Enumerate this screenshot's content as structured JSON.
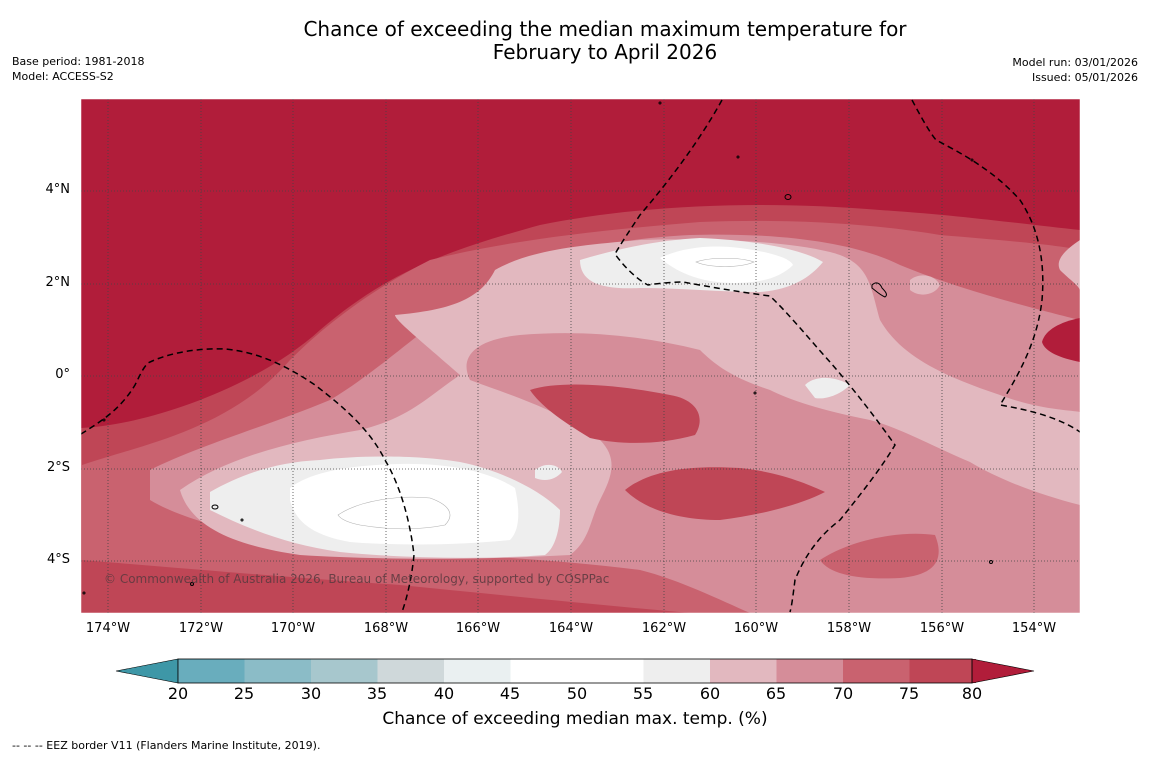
{
  "title_line1": "Chance of exceeding the median maximum temperature for",
  "title_line2": "February to April 2026",
  "base_period": "Base period: 1981-2018",
  "model": "Model: ACCESS-S2",
  "model_run": "Model run: 03/01/2026",
  "issued": "Issued: 05/01/2026",
  "copyright": "© Commonwealth of Australia 2026, Bureau of Meteorology, supported by COSPPac",
  "map": {
    "lat_labels": [
      "4°N",
      "2°N",
      "0°",
      "2°S",
      "4°S"
    ],
    "lon_labels": [
      "174°W",
      "172°W",
      "170°W",
      "168°W",
      "166°W",
      "164°W",
      "162°W",
      "160°W",
      "158°W",
      "156°W",
      "154°W"
    ]
  },
  "colorbar": {
    "ticks": [
      "20",
      "25",
      "30",
      "35",
      "40",
      "45",
      "50",
      "55",
      "60",
      "65",
      "70",
      "75",
      "80"
    ],
    "colors": [
      "#3e97a7",
      "#69adbd",
      "#8bbcc7",
      "#a7c7cd",
      "#cfd8da",
      "#eaf0f1",
      "#ffffff",
      "#ffffff",
      "#eeeeee",
      "#e2b8bf",
      "#d58d99",
      "#c9626f",
      "#bf4656",
      "#b11d3a"
    ],
    "label": "Chance of exceeding median max. temp. (%)"
  },
  "footnote": "--  --  -- EEZ border V11 (Flanders Marine Institute, 2019)."
}
